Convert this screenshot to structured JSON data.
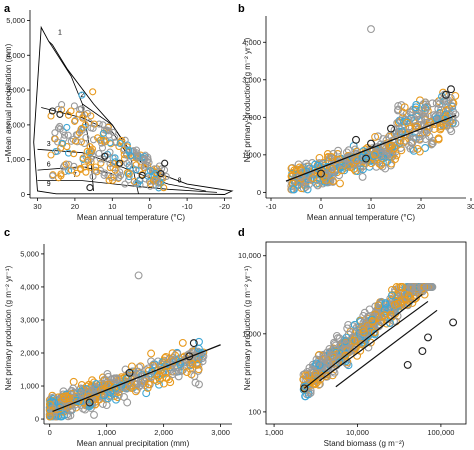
{
  "colors": {
    "grey": "#9a9a9a",
    "orange": "#e89a1e",
    "blue": "#3fa7d6",
    "black": "#222222"
  },
  "chart_data": [
    {
      "panel": "a",
      "type": "scatter",
      "xlabel": "Mean annual temperature (°C)",
      "ylabel": "Mean annual precipitation (mm)",
      "xlim": [
        32,
        -22
      ],
      "ylim": [
        -100,
        5300
      ],
      "x_ticks": [
        30,
        20,
        10,
        0,
        -10,
        -20
      ],
      "y_ticks": [
        0,
        1000,
        2000,
        3000,
        4000,
        5000
      ],
      "y_tick_labels": [
        "0",
        "1,000",
        "2,000",
        "3,000",
        "4,000",
        "5,000"
      ],
      "region_labels": [
        "1",
        "2",
        "3",
        "4",
        "5",
        "6",
        "7",
        "8",
        "9"
      ]
    },
    {
      "panel": "b",
      "type": "scatter",
      "xlabel": "Mean annual temperature (°C)",
      "ylabel": "Net primary production (g m⁻² yr⁻¹)",
      "xlim": [
        -11,
        29
      ],
      "ylim": [
        -150,
        4700
      ],
      "x_ticks": [
        -10,
        0,
        10,
        20,
        30
      ],
      "y_ticks": [
        0,
        1000,
        2000,
        3000,
        4000
      ],
      "y_tick_labels": [
        "0",
        "1,000",
        "2,000",
        "3,000",
        "4,000"
      ],
      "fit_line": {
        "x": [
          -7,
          27
        ],
        "y": [
          300,
          2050
        ]
      }
    },
    {
      "panel": "c",
      "type": "scatter",
      "xlabel": "Mean annual precipitation (mm)",
      "ylabel": "Net primary production (g m⁻² yr⁻¹)",
      "xlim": [
        -100,
        3200
      ],
      "ylim": [
        -150,
        5300
      ],
      "x_ticks": [
        0,
        1000,
        2000,
        3000
      ],
      "x_tick_labels": [
        "0",
        "1,000",
        "2,000",
        "3,000"
      ],
      "y_ticks": [
        0,
        1000,
        2000,
        3000,
        4000,
        5000
      ],
      "y_tick_labels": [
        "0",
        "1,000",
        "2,000",
        "3,000",
        "4,000",
        "5,000"
      ],
      "fit_line": {
        "x": [
          50,
          3000
        ],
        "y": [
          230,
          2250
        ]
      }
    },
    {
      "panel": "d",
      "type": "scatter",
      "scale": "log-log",
      "xlabel": "Stand biomass (g m⁻²)",
      "ylabel": "Net primary production (g m⁻² yr⁻¹)",
      "xlim": [
        800,
        200000
      ],
      "ylim": [
        70,
        15000
      ],
      "x_ticks": [
        1000,
        10000,
        100000
      ],
      "x_tick_labels": [
        "1,000",
        "10,000",
        "100,000"
      ],
      "y_ticks": [
        100,
        1000,
        10000
      ],
      "y_tick_labels": [
        "100",
        "1,000",
        "10,000"
      ],
      "fit_lines": [
        {
          "x": [
            2300,
            60000
          ],
          "y": [
            200,
            3200
          ]
        },
        {
          "x": [
            3500,
            70000
          ],
          "y": [
            250,
            2600
          ]
        },
        {
          "x": [
            5500,
            90000
          ],
          "y": [
            210,
            2000
          ]
        }
      ]
    }
  ],
  "panels": {
    "a": {
      "letter": "a",
      "xlabel": "Mean annual temperature (°C)",
      "ylabel": "Mean annual precipitation (mm)"
    },
    "b": {
      "letter": "b",
      "xlabel": "Mean annual temperature (°C)",
      "ylabel": "Net primary production (g m⁻² yr⁻¹)"
    },
    "c": {
      "letter": "c",
      "xlabel": "Mean annual precipitation (mm)",
      "ylabel": "Net primary production (g m⁻² yr⁻¹)"
    },
    "d": {
      "letter": "d",
      "xlabel": "Stand biomass (g m⁻²)",
      "ylabel": "Net primary production (g m⁻² yr⁻¹)"
    }
  }
}
